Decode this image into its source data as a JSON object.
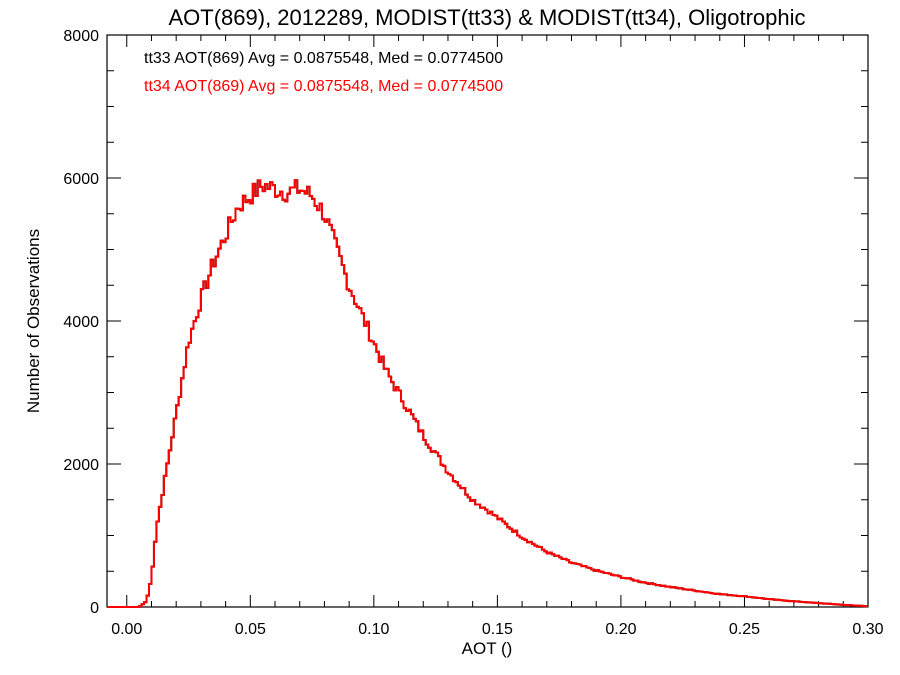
{
  "chart_data": {
    "type": "histogram",
    "title": "AOT(869), 2012289, MODIST(tt33) & MODIST(tt34), Oligotrophic",
    "xlabel": "AOT ()",
    "ylabel": "Number of Observations",
    "xlim": [
      -0.008,
      0.3
    ],
    "ylim": [
      0,
      8000
    ],
    "xticks": [
      "0.00",
      "0.05",
      "0.10",
      "0.15",
      "0.20",
      "0.25",
      "0.30"
    ],
    "xtick_values": [
      0,
      0.05,
      0.1,
      0.15,
      0.2,
      0.25,
      0.3
    ],
    "yticks": [
      "0",
      "2000",
      "4000",
      "6000",
      "8000"
    ],
    "ytick_values": [
      0,
      2000,
      4000,
      6000,
      8000
    ],
    "bin_width": 0.001,
    "grid": false,
    "legend_position": "top-left",
    "legend": [
      {
        "text": "tt33 AOT(869) Avg = 0.0875548, Med = 0.0774500",
        "color": "#000000"
      },
      {
        "text": "tt34 AOT(869) Avg = 0.0875548, Med = 0.0774500",
        "color": "#ff0000"
      }
    ],
    "series": [
      {
        "color": "#000000",
        "x": [
          0.0,
          0.005,
          0.008,
          0.01,
          0.012,
          0.015,
          0.018,
          0.02,
          0.025,
          0.03,
          0.035,
          0.04,
          0.045,
          0.05,
          0.055,
          0.06,
          0.065,
          0.07,
          0.075,
          0.08,
          0.085,
          0.09,
          0.095,
          0.1,
          0.105,
          0.11,
          0.115,
          0.12,
          0.125,
          0.13,
          0.135,
          0.14,
          0.145,
          0.15,
          0.16,
          0.17,
          0.18,
          0.19,
          0.2,
          0.21,
          0.22,
          0.23,
          0.24,
          0.25,
          0.26,
          0.27,
          0.28,
          0.29,
          0.3
        ],
        "y": [
          0,
          0,
          80,
          400,
          1100,
          1700,
          2300,
          2700,
          3700,
          4300,
          4800,
          5200,
          5600,
          5750,
          5900,
          5850,
          5800,
          5850,
          5750,
          5500,
          5000,
          4500,
          4100,
          3700,
          3300,
          3000,
          2700,
          2400,
          2150,
          1900,
          1700,
          1500,
          1380,
          1250,
          980,
          770,
          620,
          510,
          420,
          340,
          280,
          230,
          180,
          150,
          110,
          80,
          55,
          30,
          10
        ]
      },
      {
        "color": "#ff0000",
        "x": [
          0.0,
          0.005,
          0.008,
          0.01,
          0.012,
          0.015,
          0.018,
          0.02,
          0.025,
          0.03,
          0.035,
          0.04,
          0.045,
          0.05,
          0.055,
          0.06,
          0.065,
          0.07,
          0.075,
          0.08,
          0.085,
          0.09,
          0.095,
          0.1,
          0.105,
          0.11,
          0.115,
          0.12,
          0.125,
          0.13,
          0.135,
          0.14,
          0.145,
          0.15,
          0.16,
          0.17,
          0.18,
          0.19,
          0.2,
          0.21,
          0.22,
          0.23,
          0.24,
          0.25,
          0.26,
          0.27,
          0.28,
          0.29,
          0.3
        ],
        "y": [
          0,
          0,
          80,
          400,
          1100,
          1700,
          2300,
          2700,
          3700,
          4300,
          4800,
          5200,
          5600,
          5750,
          5900,
          5850,
          5800,
          5850,
          5750,
          5500,
          5000,
          4500,
          4100,
          3700,
          3300,
          3000,
          2700,
          2400,
          2150,
          1900,
          1700,
          1500,
          1380,
          1250,
          980,
          770,
          620,
          510,
          420,
          340,
          280,
          230,
          180,
          150,
          110,
          80,
          55,
          30,
          10
        ]
      }
    ]
  }
}
